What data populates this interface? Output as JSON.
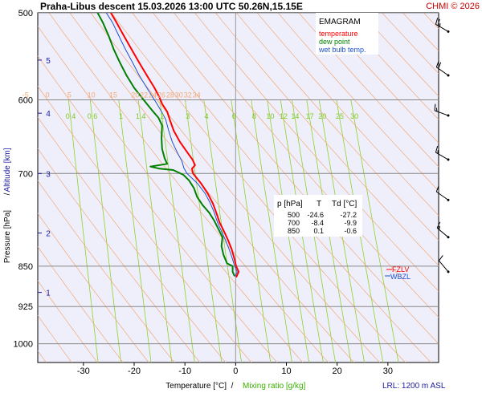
{
  "header": {
    "title": "Praha-Libus   descent   15.03.2026 13:00 UTC  50.26N,15.15E",
    "copyright": "CHMI © 2026"
  },
  "legend": {
    "title": "EMAGRAM",
    "items": [
      {
        "label": "temperature",
        "color": "#ff0000"
      },
      {
        "label": "dew point",
        "color": "#008000"
      },
      {
        "label": "wet bulb temp.",
        "color": "#1e50d0"
      }
    ]
  },
  "axes": {
    "xlabel_temperature": "Temperature [°C]",
    "xlabel_sep": "/",
    "xlabel_mixing": "Mixing ratio [g/kg]",
    "ylabel_pressure": "Pressure [hPa]",
    "ylabel_sep": "/",
    "ylabel_altitude": "Altitude [km]",
    "lrl": "LRL: 1200 m ASL"
  },
  "levels": {
    "fzl": "FZLV",
    "wbzl": "WBZL"
  },
  "table": {
    "headers": [
      "p [hPa]",
      "T",
      "Td [°C]"
    ],
    "rows": [
      [
        "500",
        "-24.6",
        "-27.2"
      ],
      [
        "700",
        "-8.4",
        "-9.9"
      ],
      [
        "850",
        "0.1",
        "-0.6"
      ]
    ]
  },
  "chart_data": {
    "type": "line",
    "title": "Praha-Libus   descent   15.03.2026 13:00 UTC  50.26N,15.15E",
    "xlabel": "Temperature [°C]",
    "ylabel": "Pressure [hPa]",
    "xlim": [
      -39,
      40
    ],
    "ylim": [
      1040,
      500
    ],
    "y_scale": "log",
    "x_ticks": [
      -30,
      -20,
      -10,
      0,
      10,
      20,
      30
    ],
    "y_ticks": [
      500,
      600,
      700,
      850,
      925,
      1000
    ],
    "altitude_ticks_km": [
      {
        "km": "5",
        "p": 552
      },
      {
        "km": "4",
        "p": 617
      },
      {
        "km": "3",
        "p": 700
      },
      {
        "km": "2",
        "p": 793
      },
      {
        "km": "1",
        "p": 898
      }
    ],
    "mixing_ratio_labels": [
      "0.4",
      "0.6",
      "1",
      "1.4",
      "2",
      "3",
      "4",
      "6",
      "8",
      "10",
      "12",
      "14",
      "17",
      "20",
      "25",
      "30"
    ],
    "mixing_ratio_values": [
      0.4,
      0.6,
      1,
      1.4,
      2,
      3,
      4,
      6,
      8,
      10,
      12,
      14,
      17,
      20,
      25,
      30
    ],
    "theta_labels": [
      "-5",
      "0",
      "5",
      "10",
      "15",
      "20",
      "22",
      "24",
      "26",
      "28",
      "30",
      "32",
      "34"
    ],
    "series": [
      {
        "name": "temperature",
        "color": "#ff0000",
        "points": [
          [
            -24.6,
            500
          ],
          [
            -23.5,
            510
          ],
          [
            -22,
            525
          ],
          [
            -20.5,
            540
          ],
          [
            -19,
            555
          ],
          [
            -17.5,
            570
          ],
          [
            -16,
            585
          ],
          [
            -15,
            597
          ],
          [
            -14.5,
            605
          ],
          [
            -13.5,
            615
          ],
          [
            -13,
            625
          ],
          [
            -12.2,
            640
          ],
          [
            -11,
            655
          ],
          [
            -9.5,
            670
          ],
          [
            -8.5,
            680
          ],
          [
            -8,
            688
          ],
          [
            -8.6,
            693
          ],
          [
            -8.4,
            700
          ],
          [
            -6.8,
            715
          ],
          [
            -5.5,
            730
          ],
          [
            -4.5,
            745
          ],
          [
            -3.8,
            760
          ],
          [
            -3.2,
            775
          ],
          [
            -2.3,
            790
          ],
          [
            -1.5,
            805
          ],
          [
            -0.8,
            820
          ],
          [
            -0.3,
            835
          ],
          [
            0.1,
            850
          ],
          [
            0.6,
            860
          ],
          [
            0.1,
            870
          ]
        ]
      },
      {
        "name": "dew point",
        "color": "#008000",
        "points": [
          [
            -27.2,
            500
          ],
          [
            -26.2,
            510
          ],
          [
            -25,
            525
          ],
          [
            -24,
            540
          ],
          [
            -22.8,
            555
          ],
          [
            -21.5,
            570
          ],
          [
            -20,
            585
          ],
          [
            -18.5,
            597
          ],
          [
            -17.5,
            605
          ],
          [
            -16.5,
            613
          ],
          [
            -15.2,
            623
          ],
          [
            -14.5,
            633
          ],
          [
            -14.6,
            650
          ],
          [
            -14.5,
            665
          ],
          [
            -14,
            678
          ],
          [
            -13.5,
            686
          ],
          [
            -16.8,
            690
          ],
          [
            -15,
            693
          ],
          [
            -12.3,
            695
          ],
          [
            -10.3,
            702
          ],
          [
            -9.2,
            710
          ],
          [
            -8.2,
            722
          ],
          [
            -7.6,
            735
          ],
          [
            -6.5,
            748
          ],
          [
            -5.2,
            760
          ],
          [
            -4.2,
            773
          ],
          [
            -3.3,
            788
          ],
          [
            -2.6,
            800
          ],
          [
            -2.8,
            815
          ],
          [
            -2.4,
            830
          ],
          [
            -1.7,
            845
          ],
          [
            -0.6,
            850
          ],
          [
            -0.6,
            860
          ],
          [
            -0.2,
            868
          ]
        ]
      },
      {
        "name": "wet bulb temp.",
        "color": "#1e50d0",
        "points": [
          [
            -25.5,
            500
          ],
          [
            -24.3,
            510
          ],
          [
            -23,
            525
          ],
          [
            -21.7,
            540
          ],
          [
            -20.3,
            555
          ],
          [
            -19,
            570
          ],
          [
            -17.5,
            585
          ],
          [
            -16.3,
            597
          ],
          [
            -15.5,
            605
          ],
          [
            -14.6,
            615
          ],
          [
            -13.8,
            625
          ],
          [
            -13.2,
            640
          ],
          [
            -12.5,
            655
          ],
          [
            -11.5,
            670
          ],
          [
            -10.6,
            682
          ],
          [
            -10.2,
            692
          ],
          [
            -9.6,
            700
          ],
          [
            -7.5,
            715
          ],
          [
            -6,
            730
          ],
          [
            -5,
            745
          ],
          [
            -4.2,
            760
          ],
          [
            -3.6,
            775
          ],
          [
            -2.8,
            790
          ],
          [
            -2,
            805
          ],
          [
            -1.3,
            820
          ],
          [
            -0.7,
            835
          ],
          [
            -0.2,
            850
          ],
          [
            0.3,
            860
          ],
          [
            -0.1,
            868
          ]
        ]
      }
    ],
    "wind_barbs": [
      {
        "p": 520,
        "dir": 300,
        "speed_kt": 25
      },
      {
        "p": 570,
        "dir": 305,
        "speed_kt": 20
      },
      {
        "p": 620,
        "dir": 290,
        "speed_kt": 15
      },
      {
        "p": 680,
        "dir": 300,
        "speed_kt": 15
      },
      {
        "p": 740,
        "dir": 305,
        "speed_kt": 10
      },
      {
        "p": 800,
        "dir": 310,
        "speed_kt": 15
      },
      {
        "p": 860,
        "dir": 320,
        "speed_kt": 10
      }
    ]
  }
}
